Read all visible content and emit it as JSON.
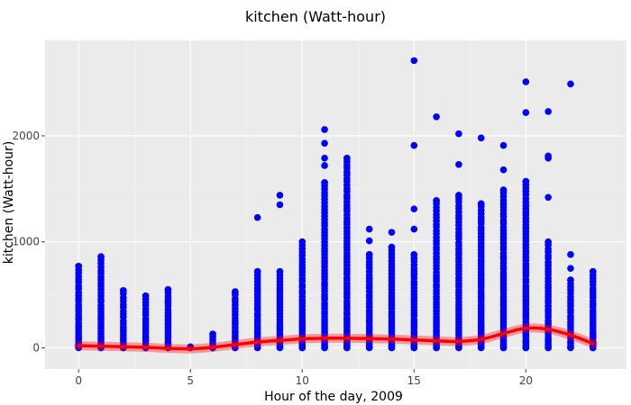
{
  "chart_data": {
    "type": "scatter",
    "title": "kitchen (Watt-hour)",
    "xlabel": "Hour of the day, 2009",
    "ylabel": "kitchen (Watt-hour)",
    "xlim": [
      -1.5,
      24.5
    ],
    "ylim": [
      -200,
      2900
    ],
    "x_ticks": [
      0,
      5,
      10,
      15,
      20
    ],
    "y_ticks": [
      0,
      1000,
      2000
    ],
    "x_tick_labels": [
      "0",
      "5",
      "10",
      "15",
      "20"
    ],
    "y_tick_labels": [
      "0",
      "1000",
      "2000"
    ],
    "grid": true,
    "series": [
      {
        "type": "scatter",
        "color": "#0000ff",
        "hours": [
          {
            "x": 0,
            "max": 770,
            "extra": []
          },
          {
            "x": 1,
            "max": 860,
            "extra": []
          },
          {
            "x": 2,
            "max": 540,
            "extra": []
          },
          {
            "x": 3,
            "max": 490,
            "extra": []
          },
          {
            "x": 4,
            "max": 550,
            "extra": [
              440
            ]
          },
          {
            "x": 5,
            "max": 10,
            "extra": []
          },
          {
            "x": 6,
            "max": 130,
            "extra": []
          },
          {
            "x": 7,
            "max": 530,
            "extra": []
          },
          {
            "x": 8,
            "max": 720,
            "extra": [
              1230
            ]
          },
          {
            "x": 9,
            "max": 720,
            "extra": [
              1350,
              1440
            ]
          },
          {
            "x": 10,
            "max": 1000,
            "extra": []
          },
          {
            "x": 11,
            "max": 1560,
            "extra": [
              1720,
              1790,
              1930,
              2060
            ]
          },
          {
            "x": 12,
            "max": 1790,
            "extra": []
          },
          {
            "x": 13,
            "max": 880,
            "extra": [
              1010,
              1120
            ]
          },
          {
            "x": 14,
            "max": 950,
            "extra": [
              1090
            ]
          },
          {
            "x": 15,
            "max": 880,
            "extra": [
              1120,
              1310,
              1910,
              2710
            ]
          },
          {
            "x": 16,
            "max": 1390,
            "extra": [
              2180
            ]
          },
          {
            "x": 17,
            "max": 1440,
            "extra": [
              1730,
              2020
            ]
          },
          {
            "x": 18,
            "max": 1360,
            "extra": [
              1980
            ]
          },
          {
            "x": 19,
            "max": 1490,
            "extra": [
              1680,
              1910
            ]
          },
          {
            "x": 20,
            "max": 1570,
            "extra": [
              2220,
              2510
            ]
          },
          {
            "x": 21,
            "max": 1000,
            "extra": [
              1420,
              1790,
              1810,
              2230
            ]
          },
          {
            "x": 22,
            "max": 640,
            "extra": [
              750,
              880,
              2490
            ]
          },
          {
            "x": 23,
            "max": 720,
            "extra": []
          }
        ]
      },
      {
        "type": "line",
        "color": "#ff0000",
        "x": [
          0,
          1,
          2,
          3,
          4,
          5,
          6,
          7,
          8,
          9,
          10,
          11,
          12,
          13,
          14,
          15,
          16,
          17,
          18,
          19,
          20,
          21,
          22,
          23
        ],
        "y": [
          20,
          15,
          10,
          5,
          -5,
          -10,
          5,
          30,
          55,
          70,
          85,
          90,
          90,
          88,
          82,
          75,
          65,
          60,
          80,
          135,
          185,
          175,
          120,
          40
        ]
      }
    ]
  }
}
